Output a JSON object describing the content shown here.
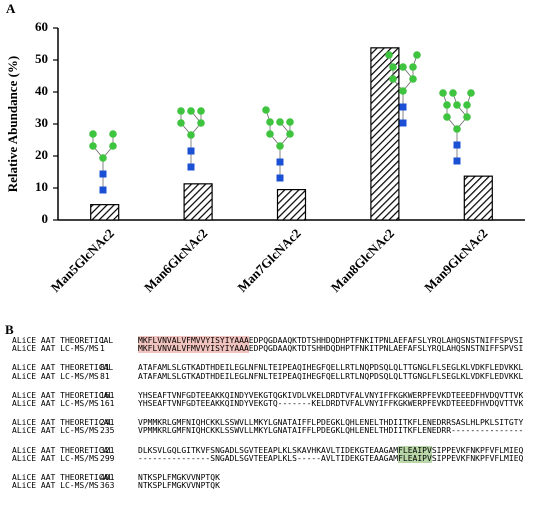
{
  "panel_labels": [
    "A",
    "B"
  ],
  "chart_data": {
    "type": "bar",
    "ylabel": "Relative Abundance (%)",
    "categories": [
      "Man5GlcNAc2",
      "Man6GlcNAc2",
      "Man7GlcNAc2",
      "Man8GlcNAc2",
      "Man9GlcNAc2"
    ],
    "values": [
      4.8,
      11.3,
      9.5,
      53.8,
      13.7
    ],
    "color": "#000000",
    "hatch": true,
    "ylim": [
      0,
      60
    ],
    "yticks": [
      0,
      10,
      20,
      30,
      40,
      50,
      60
    ],
    "grid": false
  },
  "alignment": {
    "blocks": [
      {
        "rows": [
          {
            "name": "ALiCE AAT THEORETICAL",
            "start": 1,
            "segments": [
              {
                "text": "MKFLVNVALVFMVVYISYIYAAA",
                "highlight": "#f2c4c0"
              },
              {
                "text": "EDPQGDAAQKTDTSHHDQDHPTFNKITPNLAEFAFSLYRQLAHQSNSTNIFFSPVSI"
              }
            ]
          },
          {
            "name": "ALiCE AAT LC-MS/MS",
            "start": 1,
            "segments": [
              {
                "text": "MKFLVNVALVFMVVYISYIYAAA",
                "highlight": "#f2c4c0"
              },
              {
                "text": "EDPQGDAAQKTDTSHHDQDHPTFNKITPNLAEFAFSLYRQLAHQSNSTNIFFSPVSI"
              }
            ]
          }
        ]
      },
      {
        "rows": [
          {
            "name": "ALiCE AAT THEORETICAL",
            "start": 81,
            "segments": [
              {
                "text": "ATAFAMLSLGTKADTHDEILEGLNFNLTEIPEAQIHEGFQELLRTLNQPDSQLQLTTGNGLFLSEGLKLVDKFLEDVKKL"
              }
            ]
          },
          {
            "name": "ALiCE AAT LC-MS/MS",
            "start": 81,
            "segments": [
              {
                "text": "ATAFAMLSLGTKADTHDEILEGLNFNLTEIPEAQIHEGFQELLRTLNQPDSQLQLTTGNGLFLSEGLKLVDKFLEDVKKL"
              }
            ]
          }
        ]
      },
      {
        "rows": [
          {
            "name": "ALiCE AAT THEORETICAL",
            "start": 161,
            "segments": [
              {
                "text": "YHSEAFTVNFGDTEEAKKQINDYVEKGTQGKIVDLVKELDRDTVFALVNYIFFKGKWERPFEVKDTEEEDFHVDQVTTVK"
              }
            ]
          },
          {
            "name": "ALiCE AAT LC-MS/MS",
            "start": 161,
            "segments": [
              {
                "text": "YHSEAFTVNFGDTEEAKKQINDYVEKGTQ-------KELDRDTVFALVNYIFFKGKWERPFEVKDTEEEDFHVDQVTTVK"
              }
            ]
          }
        ]
      },
      {
        "rows": [
          {
            "name": "ALiCE AAT THEORETICAL",
            "start": 241,
            "segments": [
              {
                "text": "VPMMKRLGMFNIQHCKKLSSWVLLMKYLGNATAIFFLPDEGKLQHLENELTHDIITKFLENEDRRSASLHLPKLSITGTY"
              }
            ]
          },
          {
            "name": "ALiCE AAT LC-MS/MS",
            "start": 235,
            "segments": [
              {
                "text": "VPMMKRLGMFNIQHCKKLSSWVLLMKYLGNATAIFFLPDEGKLQHLENELTHDIITKFLENEDRR---------------"
              }
            ]
          }
        ]
      },
      {
        "rows": [
          {
            "name": "ALiCE AAT THEORETICAL",
            "start": 321,
            "segments": [
              {
                "text": "DLKSVLGQLGITKVFSNGADLSGVTEEAPLKLSKAVHKAVLTIDEKGTEAAGAM"
              },
              {
                "text": "FLEAIPV",
                "highlight": "#b9d7a8"
              },
              {
                "text": "SIPPEVKFNKPFVFLMIEQ"
              }
            ]
          },
          {
            "name": "ALiCE AAT LC-MS/MS",
            "start": 299,
            "segments": [
              {
                "text": "---------------SNGADLSGVTEEAPLKLS-----AVLTIDEKGTEAAGAM"
              },
              {
                "text": "FLEAIPV",
                "highlight": "#b9d7a8"
              },
              {
                "text": "SIPPEVKFNKPFVFLMIEQ"
              }
            ]
          }
        ]
      },
      {
        "rows": [
          {
            "name": "ALiCE AAT THEORETICAL",
            "start": 401,
            "segments": [
              {
                "text": "NTKSPLFMGKVVNPTQK"
              }
            ]
          },
          {
            "name": "ALiCE AAT LC-MS/MS",
            "start": 363,
            "segments": [
              {
                "text": "NTKSPLFMGKVVNPTQK"
              }
            ]
          }
        ]
      }
    ]
  }
}
